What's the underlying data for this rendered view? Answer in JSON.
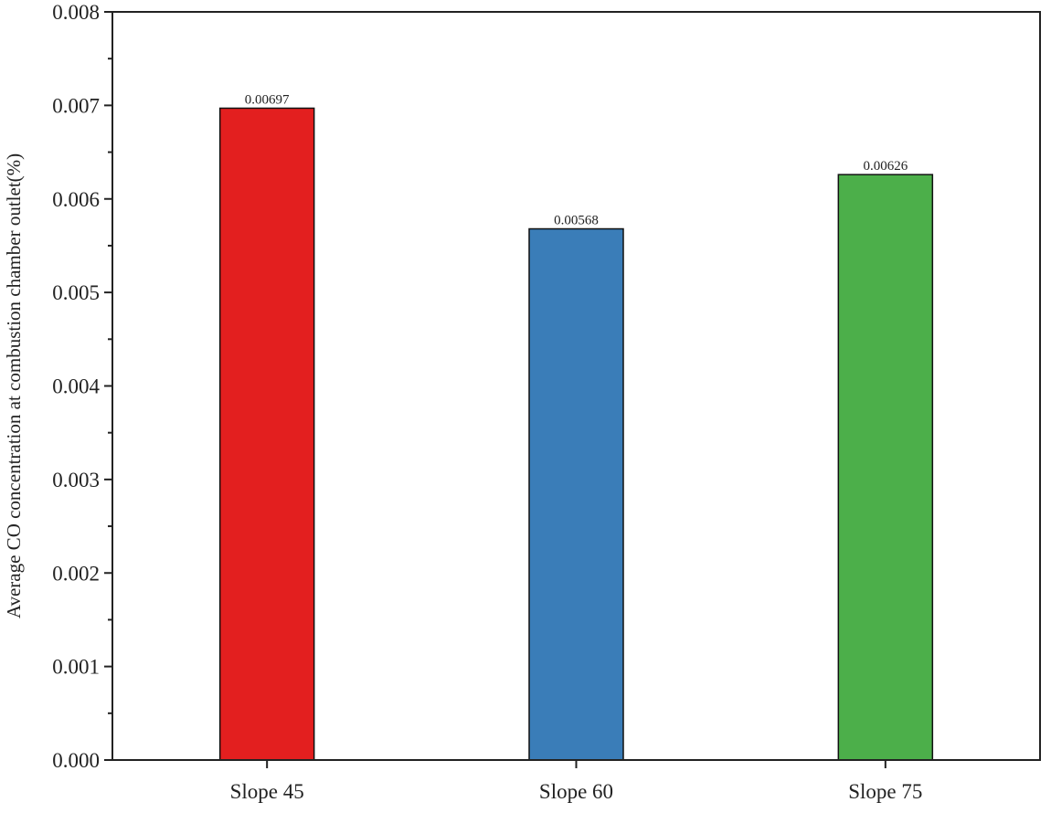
{
  "chart_data": {
    "type": "bar",
    "title": "",
    "xlabel": "",
    "ylabel": "Average CO concentration at combustion chamber outlet(%)",
    "categories": [
      "Slope 45",
      "Slope 60",
      "Slope 75"
    ],
    "values": [
      0.00697,
      0.00568,
      0.00626
    ],
    "value_labels": [
      "0.00697",
      "0.00568",
      "0.00626"
    ],
    "bar_colors": [
      "#e31f1f",
      "#3a7db8",
      "#4caf4a"
    ],
    "ylim": [
      0,
      0.008
    ],
    "yticks": [
      0,
      0.001,
      0.002,
      0.003,
      0.004,
      0.005,
      0.006,
      0.007,
      0.008
    ],
    "ytick_labels": [
      "0.000",
      "0.001",
      "0.002",
      "0.003",
      "0.004",
      "0.005",
      "0.006",
      "0.007",
      "0.008"
    ],
    "grid": false,
    "legend": "none"
  }
}
